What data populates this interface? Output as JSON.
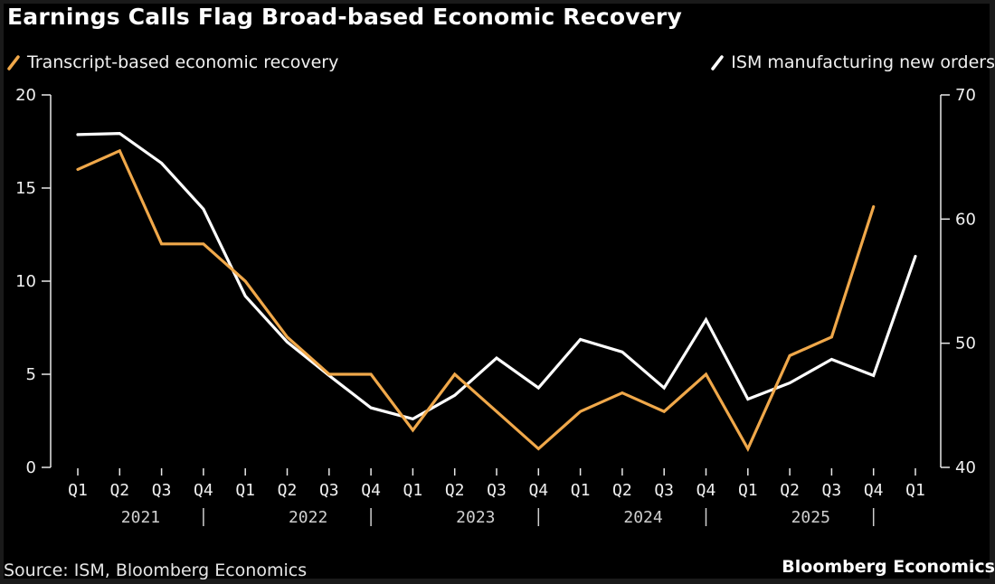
{
  "title": "Earnings Calls Flag Broad-based Economic Recovery",
  "legend": [
    {
      "label": "Transcript-based economic recovery",
      "icon": "slash-swatch-icon",
      "color": "#f0a84a"
    },
    {
      "label": "ISM manufacturing new orders",
      "icon": "slash-swatch-icon",
      "color": "#ffffff"
    }
  ],
  "footer": {
    "source": "Source: ISM, Bloomberg Economics",
    "brand": "Bloomberg Economics"
  },
  "chart_data": {
    "type": "line",
    "title": "Earnings Calls Flag Broad-based Economic Recovery",
    "x": [
      "Q1 2021",
      "Q2 2021",
      "Q3 2021",
      "Q4 2021",
      "Q1 2022",
      "Q2 2022",
      "Q3 2022",
      "Q4 2022",
      "Q1 2023",
      "Q2 2023",
      "Q3 2023",
      "Q4 2023",
      "Q1 2024",
      "Q2 2024",
      "Q3 2024",
      "Q4 2024",
      "Q1 2025",
      "Q2 2025",
      "Q3 2025",
      "Q4 2025",
      "Q1 2026"
    ],
    "x_quarter_labels": [
      "Q1",
      "Q2",
      "Q3",
      "Q4",
      "Q1",
      "Q2",
      "Q3",
      "Q4",
      "Q1",
      "Q2",
      "Q3",
      "Q4",
      "Q1",
      "Q2",
      "Q3",
      "Q4",
      "Q1",
      "Q2",
      "Q3",
      "Q4",
      "Q1"
    ],
    "x_year_labels": [
      {
        "label": "2021",
        "center_index": 1.5
      },
      {
        "label": "2022",
        "center_index": 5.5
      },
      {
        "label": "2023",
        "center_index": 9.5
      },
      {
        "label": "2024",
        "center_index": 13.5
      },
      {
        "label": "2025",
        "center_index": 17.5
      }
    ],
    "x_year_separators_after_index": [
      3,
      7,
      11,
      15,
      19
    ],
    "xlabel": "",
    "left_axis": {
      "ylabel": "",
      "ylim": [
        0,
        20
      ],
      "ticks": [
        0,
        5,
        10,
        15,
        20
      ]
    },
    "right_axis": {
      "ylabel": "",
      "ylim": [
        40,
        70
      ],
      "ticks": [
        40,
        50,
        60,
        70
      ]
    },
    "grid": false,
    "legend_position": "top",
    "series": [
      {
        "name": "Transcript-based economic recovery",
        "axis": "left",
        "color": "#f0a84a",
        "values": [
          16,
          17,
          12,
          12,
          10,
          7,
          5,
          5,
          2,
          5,
          3,
          1,
          3,
          4,
          3,
          5,
          1,
          6,
          7,
          14,
          null
        ]
      },
      {
        "name": "ISM manufacturing new orders",
        "axis": "right",
        "color": "#ffffff",
        "values": [
          66.8,
          66.9,
          64.5,
          60.8,
          53.8,
          50.1,
          47.4,
          44.8,
          43.9,
          45.8,
          48.8,
          46.4,
          50.3,
          49.3,
          46.4,
          51.9,
          45.5,
          46.8,
          48.7,
          47.4,
          57.0
        ]
      }
    ]
  }
}
